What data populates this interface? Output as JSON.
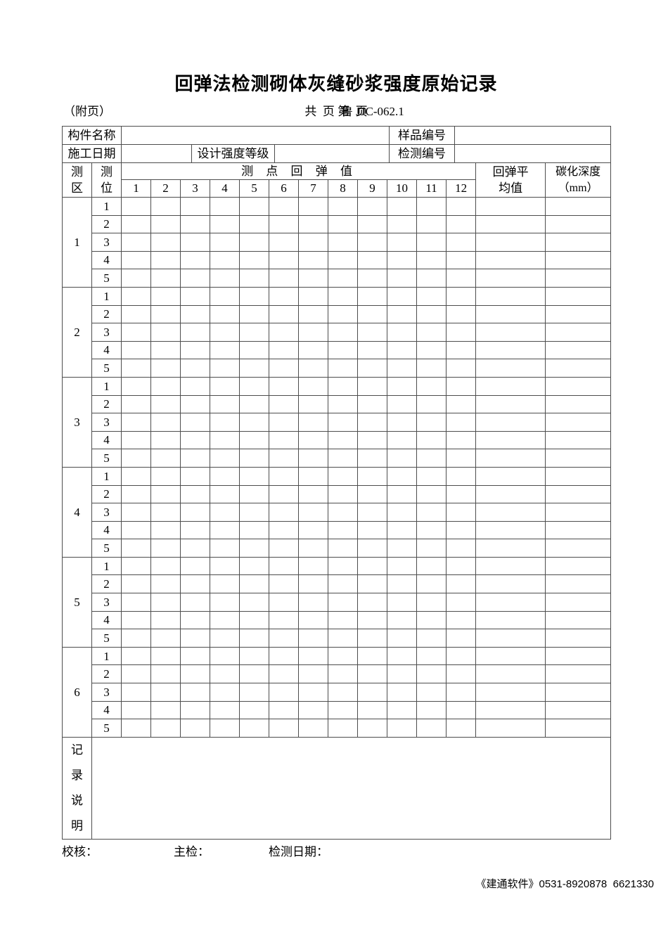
{
  "title": "回弹法检测砌体灰缝砂浆强度原始记录",
  "subheader": {
    "attachment_note": "（附页）",
    "page_info": "共  页 第  页",
    "form_code": "鲁 JJC-062.1"
  },
  "info": {
    "component_name_label": "构件名称",
    "sample_no_label": "样品编号",
    "construction_date_label": "施工日期",
    "design_strength_label": "设计强度等级",
    "test_no_label": "检测编号"
  },
  "grid": {
    "zone_label": "测\n区",
    "position_label": "测\n位",
    "points_header": "测 点 回 弹 值",
    "point_numbers": [
      "1",
      "2",
      "3",
      "4",
      "5",
      "6",
      "7",
      "8",
      "9",
      "10",
      "11",
      "12"
    ],
    "rebound_avg_label": "回弹平\n均值",
    "carbonation_label": "碳化深度\n（mm）",
    "zones": [
      {
        "zone": "1",
        "positions": [
          "1",
          "2",
          "3",
          "4",
          "5"
        ]
      },
      {
        "zone": "2",
        "positions": [
          "1",
          "2",
          "3",
          "4",
          "5"
        ]
      },
      {
        "zone": "3",
        "positions": [
          "1",
          "2",
          "3",
          "4",
          "5"
        ]
      },
      {
        "zone": "4",
        "positions": [
          "1",
          "2",
          "3",
          "4",
          "5"
        ]
      },
      {
        "zone": "5",
        "positions": [
          "1",
          "2",
          "3",
          "4",
          "5"
        ]
      },
      {
        "zone": "6",
        "positions": [
          "1",
          "2",
          "3",
          "4",
          "5"
        ]
      }
    ]
  },
  "notes_label": "记\n录\n说\n明",
  "footer": {
    "check_label": "校核：",
    "chief_label": "主检：",
    "date_label": "检测日期："
  },
  "vendor_line": "《建通软件》0531-8920878  6621330"
}
